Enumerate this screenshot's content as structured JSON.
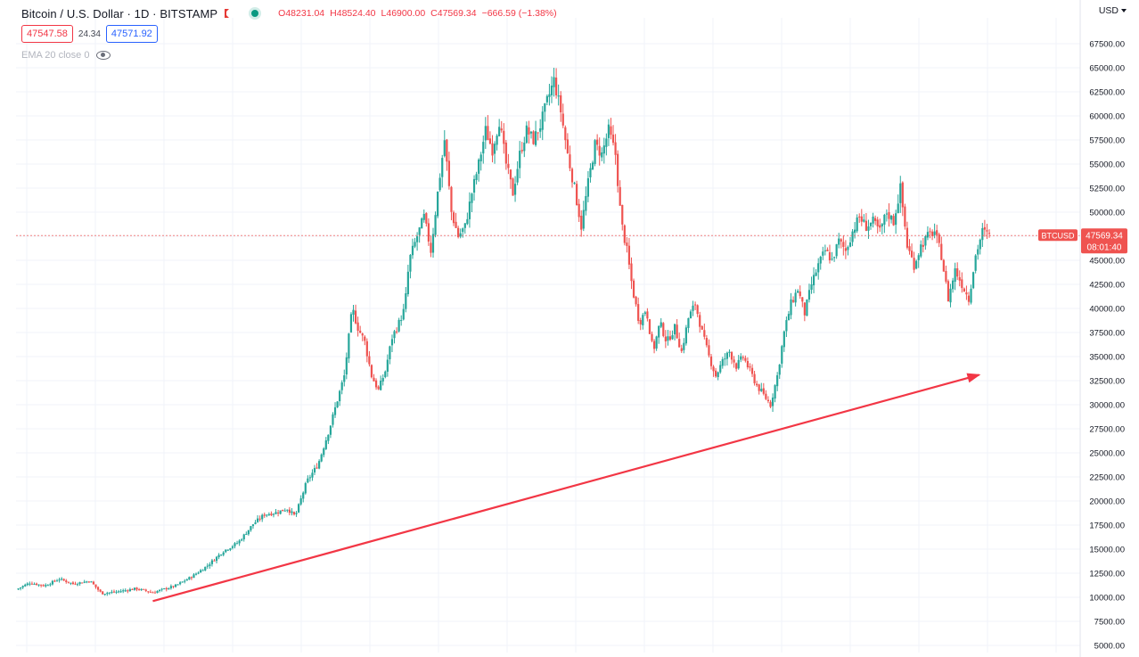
{
  "header": {
    "symbol_title": "Bitcoin / U.S. Dollar · 1D · BITSTAMP",
    "ohlc": {
      "open": "O48231.04",
      "high": "H48524.40",
      "low": "L46900.00",
      "close": "C47569.34",
      "change": "−666.59 (−1.38%)"
    },
    "sell_price": "47547.58",
    "spread": "24.34",
    "buy_price": "47571.92",
    "indicator_label": "EMA 20 close 0",
    "currency": "USD"
  },
  "colors": {
    "up": "#26a69a",
    "down": "#ef5350",
    "trend_arrow": "#f23645",
    "last_price_line": "#ef5350"
  },
  "chart_data": {
    "type": "candlestick",
    "series_name": "BTCUSD",
    "last_price": 47569.34,
    "last_price_label": "47569.34",
    "countdown_label": "08:01:40",
    "ylim": [
      5000,
      70000
    ],
    "y_ticks": [
      "5000.00",
      "7500.00",
      "10000.00",
      "12500.00",
      "15000.00",
      "17500.00",
      "20000.00",
      "22500.00",
      "25000.00",
      "27500.00",
      "30000.00",
      "32500.00",
      "35000.00",
      "37500.00",
      "40000.00",
      "42500.00",
      "45000.00",
      "47500.00",
      "50000.00",
      "52500.00",
      "55000.00",
      "57500.00",
      "60000.00",
      "62500.00",
      "65000.00",
      "67500.00"
    ],
    "grid": true,
    "price_path": [
      [
        0,
        10800
      ],
      [
        12,
        11500
      ],
      [
        25,
        11200
      ],
      [
        38,
        11900
      ],
      [
        50,
        11400
      ],
      [
        65,
        11700
      ],
      [
        75,
        10400
      ],
      [
        90,
        10600
      ],
      [
        105,
        10900
      ],
      [
        120,
        10500
      ],
      [
        140,
        11200
      ],
      [
        155,
        12200
      ],
      [
        168,
        13300
      ],
      [
        182,
        14800
      ],
      [
        195,
        15700
      ],
      [
        208,
        17600
      ],
      [
        218,
        18600
      ],
      [
        228,
        18800
      ],
      [
        238,
        19200
      ],
      [
        245,
        18400
      ],
      [
        255,
        22000
      ],
      [
        265,
        23800
      ],
      [
        275,
        27500
      ],
      [
        282,
        30500
      ],
      [
        288,
        33000
      ],
      [
        295,
        40000
      ],
      [
        300,
        38000
      ],
      [
        306,
        36500
      ],
      [
        312,
        33000
      ],
      [
        318,
        31500
      ],
      [
        324,
        33500
      ],
      [
        330,
        37000
      ],
      [
        336,
        38500
      ],
      [
        341,
        40000
      ],
      [
        345,
        45000
      ],
      [
        352,
        47500
      ],
      [
        358,
        49500
      ],
      [
        364,
        46000
      ],
      [
        370,
        52000
      ],
      [
        376,
        57500
      ],
      [
        382,
        50000
      ],
      [
        388,
        47500
      ],
      [
        394,
        48500
      ],
      [
        400,
        52000
      ],
      [
        406,
        55000
      ],
      [
        412,
        58500
      ],
      [
        418,
        56500
      ],
      [
        424,
        59500
      ],
      [
        430,
        55000
      ],
      [
        436,
        52000
      ],
      [
        442,
        56000
      ],
      [
        448,
        58500
      ],
      [
        454,
        57500
      ],
      [
        460,
        59000
      ],
      [
        466,
        61500
      ],
      [
        472,
        63700
      ],
      [
        478,
        60500
      ],
      [
        484,
        56000
      ],
      [
        490,
        52500
      ],
      [
        496,
        48500
      ],
      [
        502,
        53000
      ],
      [
        508,
        57000
      ],
      [
        514,
        56000
      ],
      [
        520,
        58500
      ],
      [
        526,
        56000
      ],
      [
        531,
        49000
      ],
      [
        536,
        46000
      ],
      [
        541,
        42000
      ],
      [
        547,
        38500
      ],
      [
        553,
        40000
      ],
      [
        559,
        35500
      ],
      [
        565,
        38500
      ],
      [
        571,
        36500
      ],
      [
        578,
        38000
      ],
      [
        584,
        35500
      ],
      [
        590,
        39000
      ],
      [
        596,
        40500
      ],
      [
        602,
        37500
      ],
      [
        608,
        35000
      ],
      [
        614,
        33000
      ],
      [
        620,
        34500
      ],
      [
        626,
        35500
      ],
      [
        632,
        34000
      ],
      [
        638,
        35000
      ],
      [
        644,
        33500
      ],
      [
        650,
        32000
      ],
      [
        656,
        31000
      ],
      [
        662,
        30000
      ],
      [
        668,
        33000
      ],
      [
        674,
        37500
      ],
      [
        680,
        40500
      ],
      [
        686,
        42000
      ],
      [
        692,
        39500
      ],
      [
        698,
        42500
      ],
      [
        704,
        44500
      ],
      [
        710,
        46000
      ],
      [
        716,
        45000
      ],
      [
        722,
        47000
      ],
      [
        728,
        46000
      ],
      [
        734,
        48000
      ],
      [
        740,
        49500
      ],
      [
        746,
        48500
      ],
      [
        752,
        49000
      ],
      [
        758,
        48000
      ],
      [
        764,
        50000
      ],
      [
        770,
        49000
      ],
      [
        776,
        52500
      ],
      [
        782,
        46500
      ],
      [
        788,
        44500
      ],
      [
        794,
        46500
      ],
      [
        800,
        47500
      ],
      [
        806,
        48000
      ],
      [
        812,
        45500
      ],
      [
        818,
        41000
      ],
      [
        824,
        44000
      ],
      [
        830,
        42500
      ],
      [
        836,
        41000
      ],
      [
        842,
        45500
      ],
      [
        848,
        48000
      ],
      [
        854,
        47569
      ]
    ]
  },
  "annotation": {
    "type": "trend-arrow",
    "start": {
      "day": 120,
      "price": 9600
    },
    "end": {
      "day": 845,
      "price": 33100
    }
  }
}
